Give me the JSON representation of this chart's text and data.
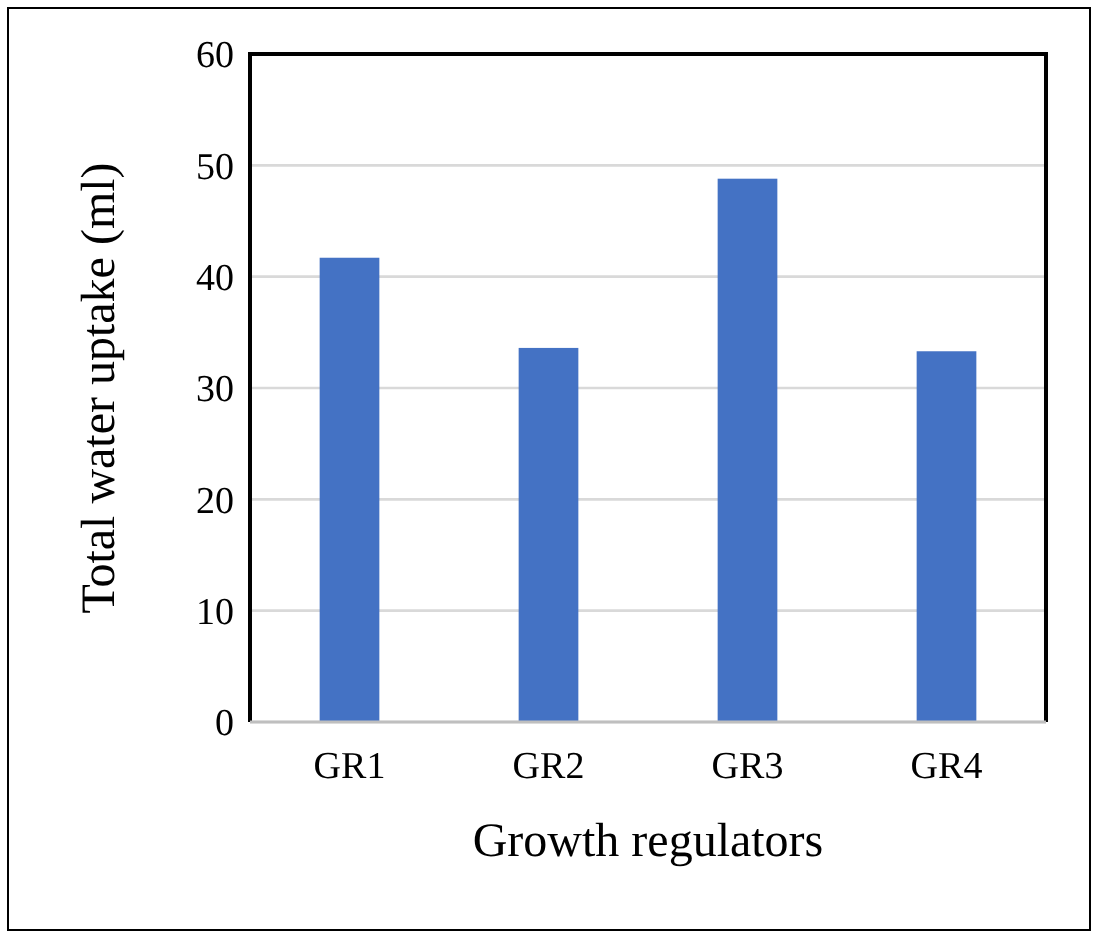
{
  "chart_data": {
    "type": "bar",
    "xlabel": "Growth regulators",
    "ylabel": "Total water uptake (ml)",
    "categories": [
      "GR1",
      "GR2",
      "GR3",
      "GR4"
    ],
    "values": [
      41.7,
      33.6,
      48.8,
      33.3
    ],
    "color": "#4472c4",
    "ylim": [
      0,
      60
    ],
    "yticks": [
      0,
      10,
      20,
      30,
      40,
      50,
      60
    ],
    "grid": "y"
  }
}
